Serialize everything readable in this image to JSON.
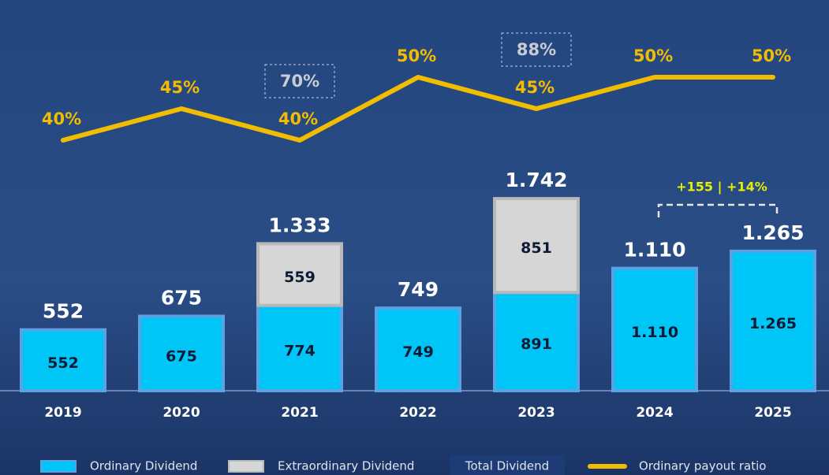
{
  "chart_data": {
    "type": "bar",
    "stacked": true,
    "categories": [
      "2019",
      "2020",
      "2021",
      "2022",
      "2023",
      "2024",
      "2025"
    ],
    "series": [
      {
        "name": "Ordinary Dividend",
        "color": "#00c6f8",
        "values": [
          552,
          675,
          774,
          749,
          891,
          1110,
          1265
        ],
        "value_labels": [
          "552",
          "675",
          "774",
          "749",
          "891",
          "1.110",
          "1.265"
        ]
      },
      {
        "name": "Extraordinary Dividend",
        "color": "#d6d6d6",
        "values": [
          null,
          null,
          559,
          null,
          851,
          null,
          null
        ]
      },
      {
        "name": "Total Dividend",
        "color": "#1d3b75",
        "type": "total",
        "values": [
          552,
          675,
          1333,
          749,
          1742,
          1110,
          1265
        ],
        "value_labels": [
          "552",
          "675",
          "1.333",
          "749",
          "1.742",
          "1.110",
          "1.265"
        ]
      },
      {
        "name": "Ordinary payout ratio",
        "type": "line",
        "color": "#f2bd00",
        "values": [
          40,
          45,
          40,
          50,
          45,
          50,
          50
        ],
        "value_labels": [
          "40%",
          "45%",
          "40%",
          "50%",
          "45%",
          "50%",
          "50%"
        ]
      }
    ],
    "boxed_payout_ratio": {
      "values": [
        null,
        null,
        70,
        null,
        88,
        null,
        null
      ],
      "value_labels": [
        null,
        null,
        "70%",
        null,
        "88%",
        null,
        null
      ]
    },
    "annotation": "+155  |  +14%"
  }
}
